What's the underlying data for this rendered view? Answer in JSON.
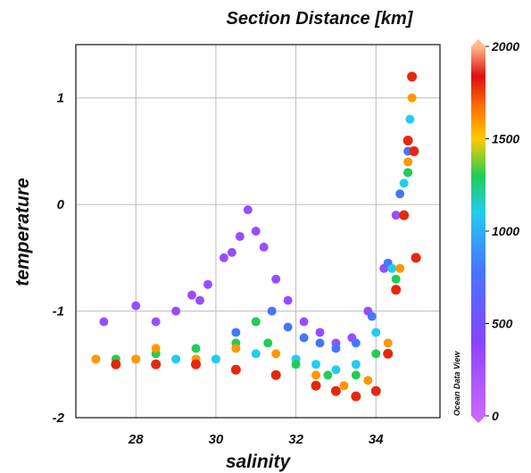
{
  "chart_data": {
    "type": "scatter",
    "title": "Section Distance [km]",
    "xlabel": "salinity",
    "ylabel": "temperature",
    "xlim": [
      26.5,
      35.6
    ],
    "ylim": [
      -2,
      1.5
    ],
    "x_ticks": [
      28,
      30,
      32,
      34
    ],
    "y_ticks": [
      1,
      0,
      -1,
      -2
    ],
    "grid": true,
    "colorbar": {
      "label": "Section Distance [km]",
      "range": [
        0,
        2000
      ],
      "ticks": [
        2000,
        1500,
        1000,
        500,
        0
      ],
      "colors": [
        "#cc66ff",
        "#8844ff",
        "#4477ff",
        "#22ccee",
        "#22cc55",
        "#ffcc00",
        "#ff7700",
        "#dd1111",
        "#ffbb88"
      ]
    },
    "watermark": "Ocean Data View",
    "series": [
      {
        "color_value": 300,
        "points": [
          [
            28.5,
            -1.1
          ],
          [
            29.0,
            -1.0
          ],
          [
            29.4,
            -0.85
          ],
          [
            29.8,
            -0.75
          ],
          [
            30.2,
            -0.5
          ],
          [
            30.6,
            -0.3
          ],
          [
            30.8,
            -0.05
          ],
          [
            31.0,
            -0.25
          ],
          [
            31.2,
            -0.4
          ],
          [
            31.5,
            -0.7
          ],
          [
            31.8,
            -0.9
          ],
          [
            32.2,
            -1.1
          ],
          [
            32.6,
            -1.2
          ],
          [
            33.0,
            -1.3
          ],
          [
            33.4,
            -1.25
          ],
          [
            33.8,
            -1.0
          ],
          [
            34.2,
            -0.6
          ],
          [
            34.5,
            -0.1
          ],
          [
            34.8,
            0.3
          ],
          [
            27.2,
            -1.1
          ],
          [
            28.0,
            -0.95
          ],
          [
            29.6,
            -0.9
          ],
          [
            30.4,
            -0.45
          ]
        ]
      },
      {
        "color_value": 800,
        "points": [
          [
            30.5,
            -1.2
          ],
          [
            31.0,
            -1.1
          ],
          [
            31.4,
            -1.0
          ],
          [
            31.8,
            -1.15
          ],
          [
            32.2,
            -1.25
          ],
          [
            32.6,
            -1.3
          ],
          [
            33.0,
            -1.35
          ],
          [
            33.5,
            -1.3
          ],
          [
            33.9,
            -1.05
          ],
          [
            34.3,
            -0.55
          ],
          [
            34.6,
            0.1
          ],
          [
            34.8,
            0.5
          ]
        ]
      },
      {
        "color_value": 1100,
        "points": [
          [
            27.0,
            -1.45
          ],
          [
            28.0,
            -1.45
          ],
          [
            29.0,
            -1.45
          ],
          [
            30.0,
            -1.45
          ],
          [
            31.0,
            -1.4
          ],
          [
            32.0,
            -1.45
          ],
          [
            32.5,
            -1.5
          ],
          [
            33.0,
            -1.55
          ],
          [
            33.5,
            -1.5
          ],
          [
            34.0,
            -1.2
          ],
          [
            34.4,
            -0.6
          ],
          [
            34.7,
            0.2
          ],
          [
            34.85,
            0.8
          ]
        ]
      },
      {
        "color_value": 1300,
        "points": [
          [
            27.5,
            -1.45
          ],
          [
            28.5,
            -1.4
          ],
          [
            29.5,
            -1.35
          ],
          [
            30.5,
            -1.3
          ],
          [
            31.0,
            -1.1
          ],
          [
            31.3,
            -1.3
          ],
          [
            32.0,
            -1.5
          ],
          [
            32.8,
            -1.6
          ],
          [
            33.5,
            -1.6
          ],
          [
            34.0,
            -1.4
          ],
          [
            34.5,
            -0.7
          ],
          [
            34.8,
            0.3
          ]
        ]
      },
      {
        "color_value": 1600,
        "points": [
          [
            27.0,
            -1.45
          ],
          [
            28.0,
            -1.45
          ],
          [
            28.5,
            -1.35
          ],
          [
            29.5,
            -1.45
          ],
          [
            30.5,
            -1.35
          ],
          [
            31.5,
            -1.4
          ],
          [
            32.5,
            -1.6
          ],
          [
            33.2,
            -1.7
          ],
          [
            33.8,
            -1.65
          ],
          [
            34.3,
            -1.3
          ],
          [
            34.6,
            -0.6
          ],
          [
            34.8,
            0.4
          ],
          [
            34.9,
            1.0
          ]
        ]
      },
      {
        "color_value": 1800,
        "points": [
          [
            27.5,
            -1.5
          ],
          [
            28.5,
            -1.5
          ],
          [
            29.5,
            -1.5
          ],
          [
            30.5,
            -1.55
          ],
          [
            31.5,
            -1.6
          ],
          [
            32.5,
            -1.7
          ],
          [
            33.0,
            -1.75
          ],
          [
            33.5,
            -1.8
          ],
          [
            34.0,
            -1.75
          ],
          [
            34.3,
            -1.4
          ],
          [
            34.5,
            -0.8
          ],
          [
            34.7,
            -0.1
          ],
          [
            34.8,
            0.6
          ],
          [
            34.9,
            1.2
          ],
          [
            34.95,
            0.5
          ],
          [
            35.0,
            -0.5
          ]
        ]
      }
    ]
  }
}
